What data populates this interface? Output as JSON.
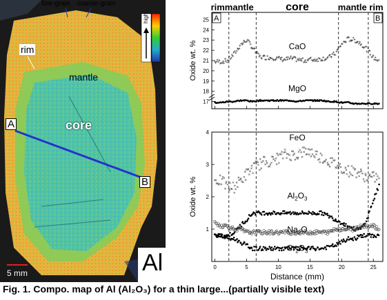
{
  "map": {
    "labels": {
      "fine_grain": "fine-grain",
      "coarse_grain": "coarse-grain",
      "rim": "rim",
      "mantle": "mantle",
      "core": "core",
      "point_a": "A",
      "point_b": "B",
      "scale": "5 mm",
      "element": "Al",
      "colorbar_high": "high"
    },
    "colors": {
      "background": "#1a1a1a",
      "core": "#5cc7b8",
      "mantle": "#7cc95e",
      "rim": "#f0b43a",
      "traverse": "#2233cc",
      "scale_bar": "#dd2222"
    }
  },
  "chart_data": [
    {
      "type": "scatter",
      "ylabel": "Oxide wt. %",
      "ylim": [
        16.3,
        25.7
      ],
      "yticks": [
        17,
        18,
        19,
        20,
        21,
        22,
        23,
        24,
        25
      ],
      "xlim": [
        -0.5,
        26.5
      ],
      "zone_labels": [
        "rim",
        "mantle",
        "core",
        "mantle",
        "rim"
      ],
      "endpoints": [
        "A",
        "B"
      ],
      "series": [
        {
          "name": "CaO",
          "marker": "plus",
          "x": [
            0,
            1,
            2,
            3,
            4,
            5,
            6,
            7,
            8,
            9,
            10,
            11,
            12,
            13,
            14,
            15,
            16,
            17,
            18,
            19,
            20,
            21,
            22,
            23,
            24,
            25,
            26
          ],
          "values": [
            20.9,
            20.9,
            21.0,
            21.6,
            22.5,
            23.0,
            22.2,
            21.4,
            21.3,
            21.3,
            21.2,
            21.1,
            21.2,
            21.1,
            21.0,
            21.1,
            21.1,
            21.2,
            21.3,
            21.7,
            22.6,
            23.1,
            23.0,
            22.7,
            22.1,
            21.3,
            21.0
          ]
        },
        {
          "name": "MgO",
          "marker": "dot",
          "x": [
            0,
            1,
            2,
            3,
            4,
            5,
            6,
            7,
            8,
            9,
            10,
            11,
            12,
            13,
            14,
            15,
            16,
            17,
            18,
            19,
            20,
            21,
            22,
            23,
            24,
            25,
            26
          ],
          "values": [
            16.9,
            16.9,
            17.0,
            17.0,
            17.1,
            17.1,
            17.0,
            17.1,
            17.1,
            17.1,
            17.1,
            17.1,
            17.1,
            17.0,
            17.1,
            17.1,
            17.1,
            17.1,
            17.0,
            17.0,
            16.9,
            16.9,
            16.8,
            16.8,
            16.8,
            16.8,
            16.8
          ]
        }
      ]
    },
    {
      "type": "scatter",
      "ylabel": "Oxide wt. %",
      "xlabel": "Distance (mm)",
      "ylim": [
        0,
        4
      ],
      "yticks": [
        1,
        2,
        3,
        4
      ],
      "xlim": [
        -0.5,
        26.5
      ],
      "xticks": [
        0,
        5,
        10,
        15,
        20,
        25
      ],
      "series": [
        {
          "name": "FeO",
          "marker": "cross",
          "x": [
            0,
            1,
            2,
            3,
            4,
            5,
            6,
            7,
            8,
            9,
            10,
            11,
            12,
            13,
            14,
            15,
            16,
            17,
            18,
            19,
            20,
            21,
            22,
            23,
            24,
            25,
            26
          ],
          "values": [
            2.5,
            2.5,
            2.3,
            2.3,
            2.5,
            2.7,
            2.9,
            3.0,
            3.1,
            3.1,
            3.2,
            3.3,
            3.3,
            3.3,
            3.4,
            3.4,
            3.3,
            3.2,
            3.1,
            3.0,
            2.9,
            2.8,
            2.8,
            2.7,
            2.6,
            2.6,
            2.6
          ]
        },
        {
          "name": "Al2O3",
          "marker": "dot",
          "x": [
            0,
            1,
            2,
            3,
            4,
            5,
            6,
            7,
            8,
            9,
            10,
            11,
            12,
            13,
            14,
            15,
            16,
            17,
            18,
            19,
            20,
            21,
            22,
            23,
            24,
            25,
            26
          ],
          "values": [
            0.8,
            0.8,
            0.8,
            0.9,
            1.1,
            1.3,
            1.5,
            1.5,
            1.5,
            1.5,
            1.5,
            1.5,
            1.5,
            1.5,
            1.5,
            1.5,
            1.5,
            1.5,
            1.4,
            1.3,
            1.2,
            1.1,
            1.0,
            1.0,
            1.3,
            1.9,
            2.4
          ]
        },
        {
          "name": "Na2O",
          "marker": "circle",
          "x": [
            0,
            1,
            2,
            3,
            4,
            5,
            6,
            7,
            8,
            9,
            10,
            11,
            12,
            13,
            14,
            15,
            16,
            17,
            18,
            19,
            20,
            21,
            22,
            23,
            24,
            25,
            26
          ],
          "values": [
            1.2,
            1.1,
            1.1,
            1.0,
            1.0,
            0.9,
            0.9,
            0.9,
            0.9,
            0.9,
            0.9,
            0.9,
            0.9,
            0.9,
            0.9,
            0.9,
            0.9,
            0.9,
            0.9,
            1.0,
            1.0,
            1.0,
            1.0,
            1.1,
            1.1,
            1.1,
            1.0
          ]
        },
        {
          "name": "Cr2O3",
          "marker": "dot",
          "x": [
            0,
            1,
            2,
            3,
            4,
            5,
            6,
            7,
            8,
            9,
            10,
            11,
            12,
            13,
            14,
            15,
            16,
            17,
            18,
            19,
            20,
            21,
            22,
            23,
            24,
            25,
            26
          ],
          "values": [
            0.8,
            0.8,
            0.7,
            0.7,
            0.6,
            0.5,
            0.4,
            0.4,
            0.4,
            0.4,
            0.4,
            0.4,
            0.4,
            0.4,
            0.4,
            0.4,
            0.4,
            0.4,
            0.45,
            0.5,
            0.6,
            0.7,
            0.7,
            0.8,
            0.8,
            0.8,
            0.8
          ]
        }
      ]
    }
  ],
  "boundaries_mm": [
    2.2,
    6.5,
    19.5,
    24.2
  ],
  "labels": {
    "top_title": "core",
    "left_zone": "rimmantle",
    "right_zone": "mantle rim",
    "cao": "CaO",
    "mgo": "MgO",
    "feo": "FeO",
    "al2o3_main": "Al",
    "al2o3_sub": "2",
    "al2o3_tail": "O",
    "al2o3_sub2": "3",
    "na2o_main": "Na",
    "na2o_sub": "2",
    "na2o_tail": "O",
    "cr2o3_main": "Cr",
    "cr2o3_sub": "2",
    "cr2o3_tail": "O",
    "cr2o3_sub2": "3"
  },
  "caption": "Fig. 1. Compo. map of Al (Al₂O₃) for a thin large...(partially visible text)"
}
